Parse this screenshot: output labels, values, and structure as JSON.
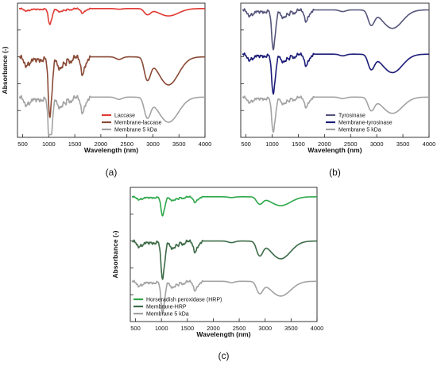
{
  "chart_data": [
    {
      "type": "line",
      "panel_label": "(a)",
      "xlabel": "Wavelength (nm)",
      "ylabel": "Absorbance (-)",
      "xlim": [
        400,
        4000
      ],
      "xticks": [
        500,
        1000,
        1500,
        2000,
        2500,
        3000,
        3500,
        4000
      ],
      "y_tick_labels_shown": false,
      "legend_position": "bottom-right",
      "grid": false,
      "series": [
        {
          "name": "Laccase",
          "color": "#e03a34",
          "baseline": 0.96,
          "scale": 0.1
        },
        {
          "name": "Membrane-laccase",
          "color": "#8a4a36",
          "baseline": 0.6,
          "scale": 0.38
        },
        {
          "name": "Membrane 5 kDa",
          "color": "#a3a3a3",
          "baseline": 0.3,
          "scale": 0.34
        }
      ]
    },
    {
      "type": "line",
      "panel_label": "(b)",
      "xlabel": "Wavelength (nm)",
      "ylabel": "",
      "xlim": [
        400,
        4000
      ],
      "xticks": [
        500,
        1000,
        1500,
        2000,
        2500,
        3000,
        3500,
        4000
      ],
      "y_tick_labels_shown": false,
      "legend_position": "bottom-right",
      "grid": false,
      "series": [
        {
          "name": "Tyrosinase",
          "color": "#55557c",
          "baseline": 0.95,
          "scale": 0.25
        },
        {
          "name": "Membrane-tyrosinase",
          "color": "#1c1c78",
          "baseline": 0.62,
          "scale": 0.25
        },
        {
          "name": "Membrane 5 kDa",
          "color": "#a3a3a3",
          "baseline": 0.3,
          "scale": 0.22
        }
      ]
    },
    {
      "type": "line",
      "panel_label": "(c)",
      "xlabel": "Wavelength (nm)",
      "ylabel": "Absorbance (-)",
      "xlim": [
        400,
        4000
      ],
      "xticks": [
        500,
        1000,
        1500,
        2000,
        2500,
        3000,
        3500,
        4000
      ],
      "y_tick_labels_shown": false,
      "legend_position": "bottom-left",
      "grid": false,
      "series": [
        {
          "name": "Horseradish peroxidase (HRP)",
          "color": "#2fa84a",
          "baseline": 0.93,
          "scale": 0.12
        },
        {
          "name": "Membrane-HRP",
          "color": "#3d6b48",
          "baseline": 0.6,
          "scale": 0.24
        },
        {
          "name": "Membrane 5 kDa",
          "color": "#a3a3a3",
          "baseline": 0.3,
          "scale": 0.2
        }
      ]
    }
  ],
  "spectrum_shape": {
    "note_peaks": "absorbance dips (center nm, depth, width)",
    "peaks": [
      [
        560,
        0.18,
        35
      ],
      [
        640,
        0.12,
        30
      ],
      [
        750,
        0.06,
        40
      ],
      [
        860,
        0.08,
        40
      ],
      [
        1015,
        1.0,
        28
      ],
      [
        1060,
        0.45,
        30
      ],
      [
        1180,
        0.18,
        25
      ],
      [
        1240,
        0.22,
        30
      ],
      [
        1320,
        0.14,
        25
      ],
      [
        1420,
        0.12,
        30
      ],
      [
        1650,
        0.35,
        35
      ],
      [
        1730,
        0.1,
        25
      ],
      [
        2350,
        0.05,
        60
      ],
      [
        2860,
        0.22,
        45
      ],
      [
        2920,
        0.28,
        50
      ],
      [
        3300,
        0.55,
        190
      ]
    ]
  }
}
